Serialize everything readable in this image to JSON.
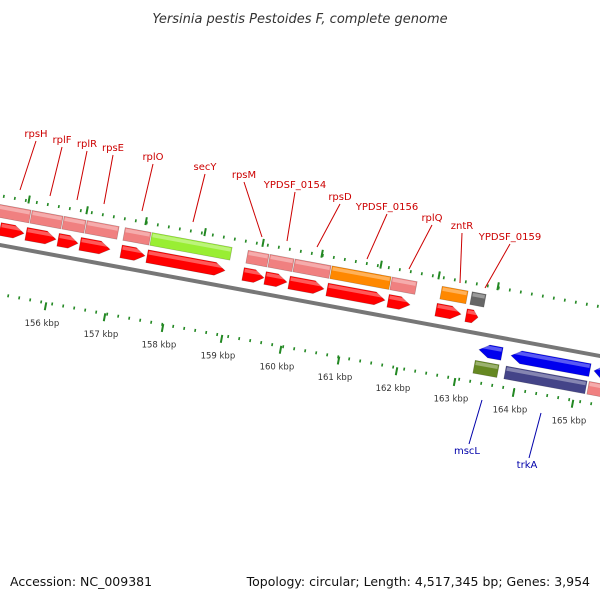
{
  "title": "Yersinia pestis Pestoides F, complete genome",
  "footer": {
    "accession": "Accession: NC_009381",
    "summary": "Topology: circular; Length: 4,517,345 bp; Genes: 3,954"
  },
  "colors": {
    "forward_label": "#cc0000",
    "reverse_label": "#0000aa",
    "cds_red": "#ff0000",
    "feature_pink": "#f08080",
    "sec_green": "#99ee33",
    "orange": "#ff8800",
    "grey": "#666666",
    "blue": "#0000ee",
    "olive": "#668822",
    "purple": "#444488",
    "tick_green": "#228822"
  },
  "forward_genes": [
    {
      "label": "rpsH"
    },
    {
      "label": "rplF"
    },
    {
      "label": "rplR"
    },
    {
      "label": "rpsE"
    },
    {
      "label": "rplO"
    },
    {
      "label": "secY"
    },
    {
      "label": "rpsM"
    },
    {
      "label": "YPDSF_0154"
    },
    {
      "label": "rpsD"
    },
    {
      "label": "YPDSF_0156"
    },
    {
      "label": "rplQ"
    },
    {
      "label": "zntR"
    },
    {
      "label": "YPDSF_0159"
    }
  ],
  "reverse_genes": [
    {
      "label": "mscL"
    },
    {
      "label": "trkA"
    }
  ],
  "kbp_ticks": [
    {
      "label": "156 kbp"
    },
    {
      "label": "157 kbp"
    },
    {
      "label": "158 kbp"
    },
    {
      "label": "159 kbp"
    },
    {
      "label": "160 kbp"
    },
    {
      "label": "161 kbp"
    },
    {
      "label": "162 kbp"
    },
    {
      "label": "163 kbp"
    },
    {
      "label": "164 kbp"
    },
    {
      "label": "165 kbp"
    }
  ]
}
